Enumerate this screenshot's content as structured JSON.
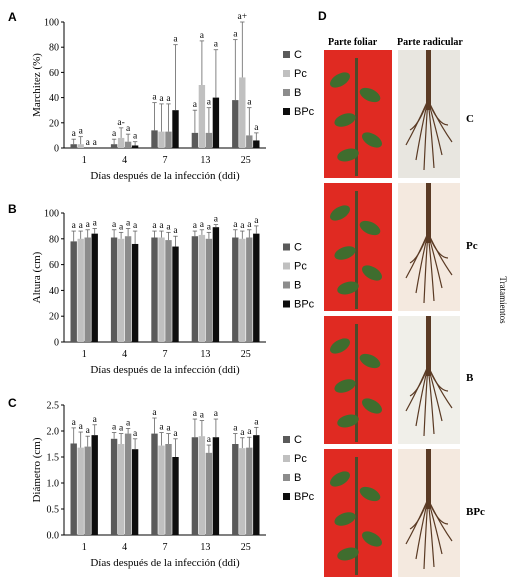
{
  "figure": {
    "photos": {
      "letter": "D",
      "columns": [
        "Parte foliar",
        "Parte radicular"
      ],
      "rows": [
        "C",
        "Pc",
        "B",
        "BPc"
      ],
      "side_label": "Tratamientos",
      "colors": {
        "background_red": "#e02a22",
        "plant_green": "#3f6d2e",
        "root_brown": "#5a3a24",
        "root_bg": "#f0efe9"
      }
    },
    "series_colors": {
      "C": "#5a5a5a",
      "Pc": "#c0c0c0",
      "B": "#8c8c8c",
      "BPc": "#0d0d0d"
    }
  },
  "chart_data": [
    {
      "panel": "A",
      "type": "bar",
      "categories": [
        "1",
        "4",
        "7",
        "13",
        "25"
      ],
      "xlabel": "Días después de la infección (ddi)",
      "ylabel": "Marchitez (%)",
      "ylim": [
        0,
        100
      ],
      "yticks": [
        "0",
        "20",
        "40",
        "60",
        "80",
        "100"
      ],
      "grid": false,
      "legend_position": "right",
      "series": [
        {
          "name": "C",
          "values": [
            3,
            3,
            14,
            12,
            38
          ],
          "errors": [
            4,
            4,
            22,
            18,
            48
          ],
          "letters": [
            "a",
            "a",
            "a",
            "a",
            "a"
          ]
        },
        {
          "name": "Pc",
          "values": [
            3,
            8,
            13,
            50,
            56
          ],
          "errors": [
            6,
            8,
            22,
            35,
            44
          ],
          "letters": [
            "a",
            "a-",
            "a",
            "a",
            "a+"
          ]
        },
        {
          "name": "B",
          "values": [
            0,
            5,
            13,
            12,
            10
          ],
          "errors": [
            0,
            6,
            22,
            20,
            22
          ],
          "letters": [
            "a",
            "a",
            "a",
            "a",
            "a"
          ]
        },
        {
          "name": "BPc",
          "values": [
            0,
            2,
            30,
            40,
            6
          ],
          "errors": [
            0,
            3,
            52,
            38,
            6
          ],
          "letters": [
            "a",
            "a",
            "a",
            "a",
            "a"
          ]
        }
      ]
    },
    {
      "panel": "B",
      "type": "bar",
      "categories": [
        "1",
        "4",
        "7",
        "13",
        "25"
      ],
      "xlabel": "Días después de la infección (ddi)",
      "ylabel": "Altura (cm)",
      "ylim": [
        0,
        100
      ],
      "yticks": [
        "0",
        "20",
        "40",
        "60",
        "80",
        "100"
      ],
      "grid": false,
      "legend_position": "right",
      "series": [
        {
          "name": "C",
          "values": [
            78,
            81,
            81,
            82,
            81
          ],
          "errors": [
            8,
            6,
            5,
            4,
            6
          ],
          "letters": [
            "a",
            "a",
            "a",
            "a",
            "a"
          ]
        },
        {
          "name": "Pc",
          "values": [
            80,
            80,
            81,
            83,
            80
          ],
          "errors": [
            6,
            5,
            5,
            4,
            6
          ],
          "letters": [
            "a",
            "a",
            "a",
            "a",
            "a"
          ]
        },
        {
          "name": "B",
          "values": [
            81,
            82,
            79,
            80,
            81
          ],
          "errors": [
            6,
            6,
            6,
            5,
            6
          ],
          "letters": [
            "a",
            "a",
            "a",
            "a",
            "a"
          ]
        },
        {
          "name": "BPc",
          "values": [
            84,
            76,
            74,
            89,
            84
          ],
          "errors": [
            4,
            10,
            8,
            2,
            6
          ],
          "letters": [
            "a",
            "a",
            "a",
            "a",
            "a"
          ]
        }
      ]
    },
    {
      "panel": "C",
      "type": "bar",
      "categories": [
        "1",
        "4",
        "7",
        "13",
        "25"
      ],
      "xlabel": "Días después de la infección (ddi)",
      "ylabel": "Diámetro (cm)",
      "ylim": [
        0,
        2.5
      ],
      "yticks": [
        "0.0",
        "0.5",
        "1.0",
        "1.5",
        "2.0",
        "2.5"
      ],
      "grid": false,
      "legend_position": "right",
      "series": [
        {
          "name": "C",
          "values": [
            1.76,
            1.85,
            1.95,
            1.88,
            1.75
          ],
          "errors": [
            0.3,
            0.12,
            0.3,
            0.35,
            0.2
          ],
          "letters": [
            "a",
            "a",
            "a",
            "a",
            "a"
          ]
        },
        {
          "name": "Pc",
          "values": [
            1.68,
            1.75,
            1.72,
            1.9,
            1.67
          ],
          "errors": [
            0.3,
            0.2,
            0.25,
            0.3,
            0.2
          ],
          "letters": [
            "a",
            "a",
            "a",
            "a",
            "a"
          ]
        },
        {
          "name": "B",
          "values": [
            1.7,
            1.95,
            1.75,
            1.58,
            1.68
          ],
          "errors": [
            0.2,
            0.1,
            0.2,
            0.15,
            0.2
          ],
          "letters": [
            "a",
            "a",
            "a",
            "a",
            "a"
          ]
        },
        {
          "name": "BPc",
          "values": [
            1.92,
            1.65,
            1.5,
            1.88,
            1.92
          ],
          "errors": [
            0.2,
            0.2,
            0.35,
            0.35,
            0.15
          ],
          "letters": [
            "a",
            "a",
            "a",
            "a",
            "a"
          ]
        }
      ]
    }
  ]
}
